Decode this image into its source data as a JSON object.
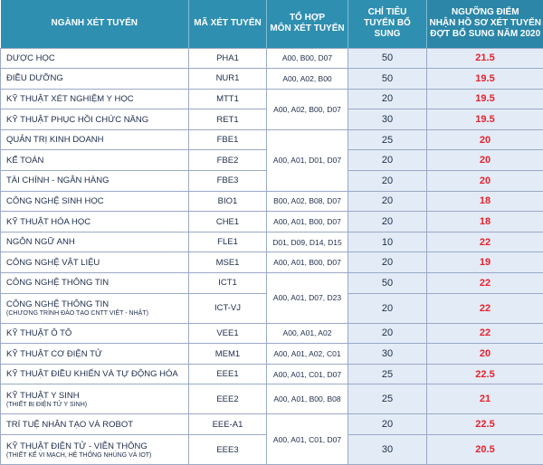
{
  "headers": {
    "major": "NGÀNH XÉT TUYỂN",
    "code": "MÃ XÉT TUYỂN",
    "combo_line1": "TỔ HỢP",
    "combo_line2": "MÔN XÉT TUYỂN",
    "quota_line1": "CHỈ TIÊU",
    "quota_line2": "TUYỂN BỔ SUNG",
    "score_line1": "NGƯỠNG ĐIỂM",
    "score_line2": "NHẬN HỒ SƠ XÉT TUYỂN",
    "score_line3": "ĐỢT BỔ SUNG NĂM 2020"
  },
  "rows": [
    {
      "name": "DƯỢC HỌC",
      "code": "PHA1",
      "combo": "A00, B00, D07",
      "quota": "50",
      "score": "21.5"
    },
    {
      "name": "ĐIỀU DƯỠNG",
      "code": "NUR1",
      "combo": "A00, A02, B00",
      "quota": "50",
      "score": "19.5"
    },
    {
      "name": "KỸ THUẬT XÉT NGHIỆM Y HỌC",
      "code": "MTT1",
      "combo": "A00, A02, B00, D07",
      "quota": "20",
      "score": "19.5"
    },
    {
      "name": "KỸ THUẬT PHỤC HỒI CHỨC NĂNG",
      "code": "RET1",
      "quota": "30",
      "score": "19.5"
    },
    {
      "name": "QUẢN TRỊ KINH DOANH",
      "code": "FBE1",
      "combo": "A00, A01, D01, D07",
      "quota": "25",
      "score": "20"
    },
    {
      "name": "KẾ TOÁN",
      "code": "FBE2",
      "quota": "20",
      "score": "20"
    },
    {
      "name": "TÀI CHÍNH - NGÂN HÀNG",
      "code": "FBE3",
      "quota": "20",
      "score": "20"
    },
    {
      "name": "CÔNG NGHỆ SINH HỌC",
      "code": "BIO1",
      "combo": "B00, A02, B08, D07",
      "quota": "20",
      "score": "18"
    },
    {
      "name": "KỸ THUẬT HÓA HỌC",
      "code": "CHE1",
      "combo": "A00, A01, B00, D07",
      "quota": "20",
      "score": "18"
    },
    {
      "name": "NGÔN NGỮ ANH",
      "code": "FLE1",
      "combo": "D01, D09, D14, D15",
      "quota": "10",
      "score": "22"
    },
    {
      "name": "CÔNG NGHỆ VẬT LIỆU",
      "code": "MSE1",
      "combo": "A00, A01, B00, D07",
      "quota": "20",
      "score": "19"
    },
    {
      "name": "CÔNG NGHỆ THÔNG TIN",
      "code": "ICT1",
      "combo": "A00, A01, D07, D23",
      "quota": "50",
      "score": "22"
    },
    {
      "name": "CÔNG NGHỆ THÔNG TIN",
      "sub": "(CHƯƠNG TRÌNH ĐÀO TẠO CNTT VIỆT - NHẬT)",
      "code": "ICT-VJ",
      "quota": "20",
      "score": "22"
    },
    {
      "name": "KỸ THUẬT Ô TÔ",
      "code": "VEE1",
      "combo": "A00, A01, A02",
      "quota": "20",
      "score": "22"
    },
    {
      "name": "KỸ THUẬT CƠ ĐIỆN TỬ",
      "code": "MEM1",
      "combo": "A00, A01, A02, C01",
      "quota": "30",
      "score": "20"
    },
    {
      "name": "KỸ THUẬT ĐIỀU KHIỂN VÀ TỰ ĐỘNG HÓA",
      "code": "EEE1",
      "combo": "A00, A01, C01, D07",
      "quota": "25",
      "score": "22.5"
    },
    {
      "name": "KỸ THUẬT Y SINH",
      "sub": "(THIẾT BỊ ĐIỆN TỬ Y SINH)",
      "code": "EEE2",
      "combo": "A00, A01, B00, B08",
      "quota": "25",
      "score": "21"
    },
    {
      "name": "TRÍ TUỆ NHÂN TẠO VÀ ROBOT",
      "code": "EEE-A1",
      "combo": "A00, A01, C01, D07",
      "quota": "20",
      "score": "22.5"
    },
    {
      "name": "KỸ THUẬT ĐIỆN TỬ - VIỄN THÔNG",
      "sub": "(THIẾT KẾ VI MẠCH, HỆ THỐNG NHÚNG VÀ IOT)",
      "code": "EEE3",
      "quota": "30",
      "score": "20.5"
    }
  ]
}
